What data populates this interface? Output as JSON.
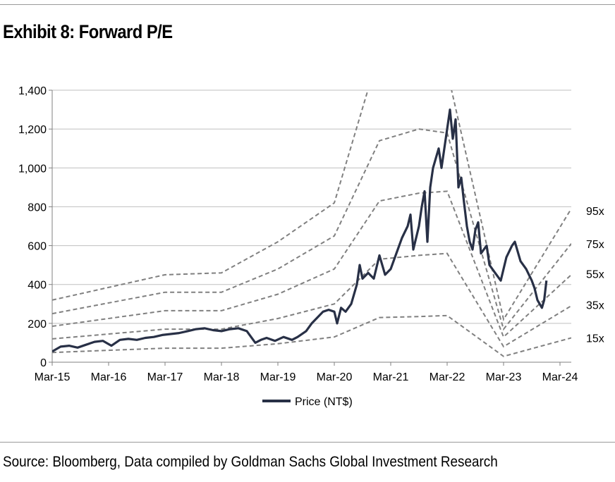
{
  "title": "Exhibit 8: Forward P/E",
  "source": "Source: Bloomberg, Data compiled by Goldman Sachs Global Investment Research",
  "chart_data": {
    "type": "line",
    "ylim": [
      0,
      1400
    ],
    "yticks": [
      0,
      200,
      400,
      600,
      800,
      1000,
      1200,
      1400
    ],
    "ytick_labels": [
      "0",
      "200",
      "400",
      "600",
      "800",
      "1,000",
      "1,200",
      "1,400"
    ],
    "xlim": [
      2015.0,
      2024.2
    ],
    "xticks": [
      2015,
      2016,
      2017,
      2018,
      2019,
      2020,
      2021,
      2022,
      2023,
      2024
    ],
    "xtick_labels": [
      "Mar-15",
      "Mar-16",
      "Mar-17",
      "Mar-18",
      "Mar-19",
      "Mar-20",
      "Mar-21",
      "Mar-22",
      "Mar-23",
      "Mar-24"
    ],
    "grid": "horizontal",
    "legend": "bottom",
    "colors": {
      "price": "#283046",
      "bands": "#808080",
      "grid": "#bfbfbf"
    },
    "series": [
      {
        "name": "Price (NT$)",
        "style": "solid",
        "x": [
          2015.0,
          2015.15,
          2015.3,
          2015.45,
          2015.6,
          2015.75,
          2015.9,
          2016.05,
          2016.2,
          2016.35,
          2016.5,
          2016.65,
          2016.8,
          2016.95,
          2017.1,
          2017.25,
          2017.4,
          2017.55,
          2017.7,
          2017.85,
          2018.0,
          2018.15,
          2018.3,
          2018.45,
          2018.6,
          2018.7,
          2018.8,
          2018.95,
          2019.1,
          2019.25,
          2019.35,
          2019.5,
          2019.6,
          2019.7,
          2019.8,
          2019.9,
          2020.0,
          2020.05,
          2020.12,
          2020.2,
          2020.3,
          2020.4,
          2020.45,
          2020.5,
          2020.6,
          2020.7,
          2020.8,
          2020.9,
          2021.0,
          2021.1,
          2021.15,
          2021.2,
          2021.3,
          2021.35,
          2021.4,
          2021.5,
          2021.55,
          2021.6,
          2021.65,
          2021.7,
          2021.75,
          2021.8,
          2021.85,
          2021.9,
          2022.0,
          2022.05,
          2022.1,
          2022.15,
          2022.2,
          2022.25,
          2022.3,
          2022.35,
          2022.4,
          2022.45,
          2022.5,
          2022.55,
          2022.6,
          2022.7,
          2022.75,
          2022.85,
          2022.95,
          2023.05,
          2023.15,
          2023.2,
          2023.3,
          2023.4,
          2023.5,
          2023.55,
          2023.6,
          2023.68,
          2023.72,
          2023.76
        ],
        "y": [
          55,
          80,
          85,
          75,
          90,
          105,
          110,
          85,
          115,
          120,
          115,
          125,
          130,
          140,
          145,
          150,
          160,
          170,
          175,
          165,
          160,
          170,
          175,
          160,
          100,
          115,
          125,
          110,
          130,
          115,
          130,
          160,
          200,
          230,
          260,
          270,
          260,
          200,
          280,
          260,
          300,
          400,
          500,
          430,
          460,
          430,
          550,
          450,
          480,
          560,
          600,
          640,
          700,
          760,
          580,
          700,
          800,
          880,
          620,
          900,
          1000,
          1050,
          1100,
          1000,
          1200,
          1300,
          1150,
          1250,
          900,
          950,
          820,
          700,
          620,
          580,
          680,
          720,
          560,
          600,
          500,
          460,
          420,
          540,
          600,
          620,
          520,
          480,
          420,
          380,
          320,
          280,
          320,
          420
        ]
      },
      {
        "name": "95x",
        "style": "dashed",
        "x": [
          2015.0,
          2017.0,
          2018.0,
          2019.0,
          2020.0,
          2020.8,
          2021.5,
          2022.0,
          2023.0,
          2024.2
        ],
        "y": [
          320,
          450,
          460,
          620,
          820,
          1600,
          2000,
          1500,
          220,
          790
        ]
      },
      {
        "name": "75x",
        "style": "dashed",
        "x": [
          2015.0,
          2017.0,
          2018.0,
          2019.0,
          2020.0,
          2020.8,
          2021.5,
          2022.0,
          2023.0,
          2024.2
        ],
        "y": [
          250,
          360,
          360,
          480,
          650,
          1140,
          1200,
          1180,
          170,
          610
        ]
      },
      {
        "name": "55x",
        "style": "dashed",
        "x": [
          2015.0,
          2017.0,
          2018.0,
          2019.0,
          2020.0,
          2020.8,
          2021.5,
          2022.0,
          2023.0,
          2024.2
        ],
        "y": [
          185,
          265,
          265,
          350,
          480,
          830,
          870,
          880,
          130,
          450
        ]
      },
      {
        "name": "35x",
        "style": "dashed",
        "x": [
          2015.0,
          2017.0,
          2018.0,
          2019.0,
          2020.0,
          2020.8,
          2021.5,
          2022.0,
          2023.0,
          2024.2
        ],
        "y": [
          120,
          170,
          170,
          225,
          300,
          530,
          550,
          560,
          80,
          290
        ]
      },
      {
        "name": "15x",
        "style": "dashed",
        "x": [
          2015.0,
          2017.0,
          2018.0,
          2019.0,
          2020.0,
          2020.8,
          2021.5,
          2022.0,
          2023.0,
          2024.2
        ],
        "y": [
          50,
          72,
          72,
          95,
          130,
          230,
          235,
          240,
          30,
          125
        ]
      }
    ],
    "band_labels": [
      {
        "text": "95x",
        "y": 780
      },
      {
        "text": "75x",
        "y": 610
      },
      {
        "text": "55x",
        "y": 455
      },
      {
        "text": "35x",
        "y": 295
      },
      {
        "text": "15x",
        "y": 125
      }
    ]
  }
}
